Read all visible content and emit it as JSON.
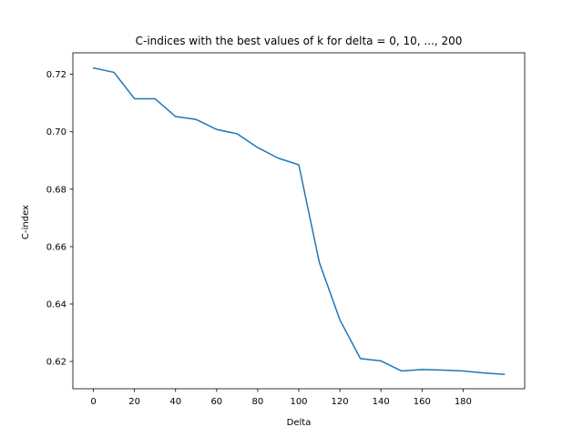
{
  "chart_data": {
    "type": "line",
    "title": "C-indices with the best values of k for delta = 0, 10, ..., 200",
    "xlabel": "Delta",
    "ylabel": "C-index",
    "xlim": [
      -10,
      210
    ],
    "ylim": [
      0.6105,
      0.7275
    ],
    "xticks": [
      0,
      20,
      40,
      60,
      80,
      100,
      120,
      140,
      160,
      180
    ],
    "xtick_labels": [
      "0",
      "20",
      "40",
      "60",
      "80",
      "100",
      "120",
      "140",
      "160",
      "180"
    ],
    "yticks": [
      0.62,
      0.64,
      0.66,
      0.68,
      0.7,
      0.72
    ],
    "ytick_labels": [
      "0.62",
      "0.64",
      "0.66",
      "0.68",
      "0.70",
      "0.72"
    ],
    "grid": false,
    "series": [
      {
        "color": "#1f77b4",
        "x": [
          0,
          10,
          20,
          30,
          40,
          50,
          60,
          70,
          80,
          90,
          100,
          110,
          120,
          130,
          140,
          150,
          160,
          170,
          180,
          190,
          200
        ],
        "y": [
          0.7222,
          0.7207,
          0.7115,
          0.7115,
          0.7053,
          0.7043,
          0.7008,
          0.6993,
          0.6945,
          0.6908,
          0.6885,
          0.6545,
          0.6345,
          0.621,
          0.6202,
          0.6167,
          0.6172,
          0.617,
          0.6167,
          0.616,
          0.6155
        ]
      }
    ]
  }
}
